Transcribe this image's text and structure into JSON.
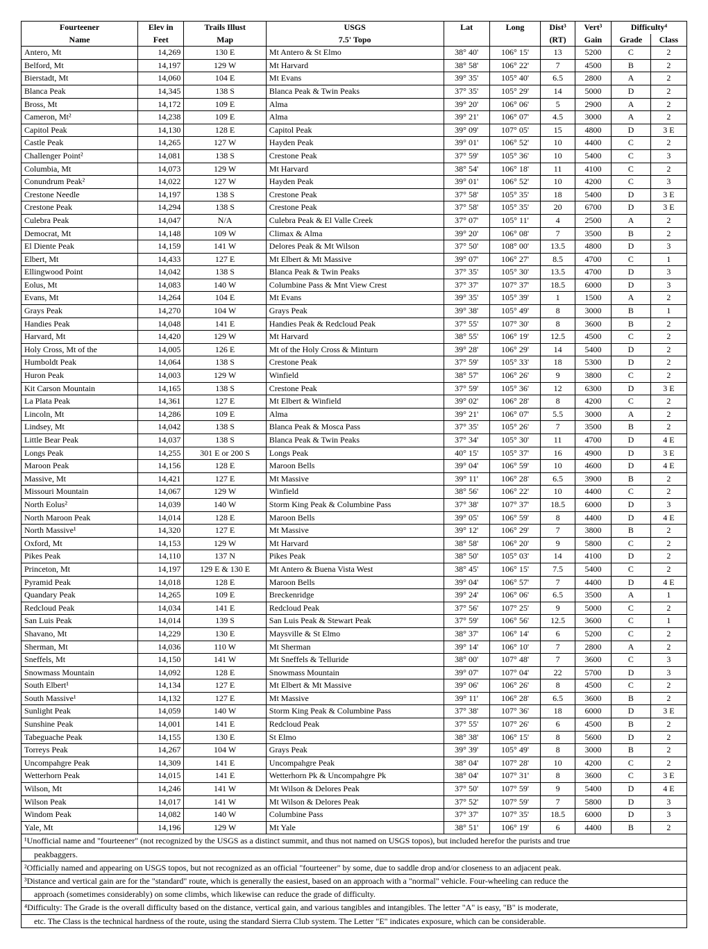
{
  "headers": {
    "row1": [
      "Fourteener",
      "Elev in",
      "Trails Illust",
      "USGS",
      "Lat",
      "Long",
      "Dist³",
      "Vert³",
      "Difficulty⁴"
    ],
    "row2": [
      "Name",
      "Feet",
      "Map",
      "7.5'  Topo",
      "",
      "",
      "(RT)",
      "Gain",
      "Grade",
      "Class"
    ]
  },
  "rows": [
    [
      "Antero, Mt",
      "14,269",
      "130 E",
      "Mt Antero  &  St Elmo",
      "38° 40'",
      "106° 15'",
      "13",
      "5200",
      "C",
      "2"
    ],
    [
      "Belford, Mt",
      "14,197",
      "129 W",
      "Mt Harvard",
      "38° 58'",
      "106° 22'",
      "7",
      "4500",
      "B",
      "2"
    ],
    [
      "Bierstadt, Mt",
      "14,060",
      "104 E",
      "Mt Evans",
      "39° 35'",
      "105° 40'",
      "6.5",
      "2800",
      "A",
      "2"
    ],
    [
      "Blanca Peak",
      "14,345",
      "138 S",
      "Blanca Peak  &  Twin Peaks",
      "37° 35'",
      "105° 29'",
      "14",
      "5000",
      "D",
      "2"
    ],
    [
      "Bross, Mt",
      "14,172",
      "109 E",
      "Alma",
      "39° 20'",
      "106° 06'",
      "5",
      "2900",
      "A",
      "2"
    ],
    [
      "Cameron, Mt²",
      "14,238",
      "109 E",
      "Alma",
      "39° 21'",
      "106° 07'",
      "4.5",
      "3000",
      "A",
      "2"
    ],
    [
      "Capitol Peak",
      "14,130",
      "128 E",
      "Capitol Peak",
      "39° 09'",
      "107° 05'",
      "15",
      "4800",
      "D",
      "3 E"
    ],
    [
      "Castle Peak",
      "14,265",
      "127 W",
      "Hayden Peak",
      "39° 01'",
      "106° 52'",
      "10",
      "4400",
      "C",
      "2"
    ],
    [
      "Challenger Point²",
      "14,081",
      "138 S",
      "Crestone Peak",
      "37° 59'",
      "105° 36'",
      "10",
      "5400",
      "C",
      "3"
    ],
    [
      "Columbia, Mt",
      "14,073",
      "129 W",
      "Mt Harvard",
      "38° 54'",
      "106° 18'",
      "11",
      "4100",
      "C",
      "2"
    ],
    [
      "Conundrum Peak²",
      "14,022",
      "127 W",
      "Hayden Peak",
      "39° 01'",
      "106° 52'",
      "10",
      "4200",
      "C",
      "3"
    ],
    [
      "Crestone Needle",
      "14,197",
      "138 S",
      "Crestone Peak",
      "37° 58'",
      "105° 35'",
      "18",
      "5400",
      "D",
      "3 E"
    ],
    [
      "Crestone Peak",
      "14,294",
      "138 S",
      "Crestone Peak",
      "37° 58'",
      "105° 35'",
      "20",
      "6700",
      "D",
      "3 E"
    ],
    [
      "Culebra Peak",
      "14,047",
      "N/A",
      "Culebra Peak  &  El Valle Creek",
      "37° 07'",
      "105° 11'",
      "4",
      "2500",
      "A",
      "2"
    ],
    [
      "Democrat, Mt",
      "14,148",
      "109 W",
      "Climax & Alma",
      "39° 20'",
      "106° 08'",
      "7",
      "3500",
      "B",
      "2"
    ],
    [
      "El Diente Peak",
      "14,159",
      "141 W",
      "Delores Peak  &  Mt Wilson",
      "37° 50'",
      "108° 00'",
      "13.5",
      "4800",
      "D",
      "3"
    ],
    [
      "Elbert, Mt",
      "14,433",
      "127 E",
      "Mt Elbert  &  Mt Massive",
      "39° 07'",
      "106° 27'",
      "8.5",
      "4700",
      "C",
      "1"
    ],
    [
      "Ellingwood Point",
      "14,042",
      "138 S",
      "Blanca Peak &  Twin Peaks",
      "37° 35'",
      "105° 30'",
      "13.5",
      "4700",
      "D",
      "3"
    ],
    [
      "Eolus, Mt",
      "14,083",
      "140 W",
      "Columbine Pass  &  Mnt View Crest",
      "37° 37'",
      "107° 37'",
      "18.5",
      "6000",
      "D",
      "3"
    ],
    [
      "Evans, Mt",
      "14,264",
      "104 E",
      "Mt Evans",
      "39° 35'",
      "105° 39'",
      "1",
      "1500",
      "A",
      "2"
    ],
    [
      "Grays Peak",
      "14,270",
      "104 W",
      "Grays Peak",
      "39° 38'",
      "105° 49'",
      "8",
      "3000",
      "B",
      "1"
    ],
    [
      "Handies Peak",
      "14,048",
      "141 E",
      "Handies Peak  &  Redcloud Peak",
      "37° 55'",
      "107° 30'",
      "8",
      "3600",
      "B",
      "2"
    ],
    [
      "Harvard, Mt",
      "14,420",
      "129 W",
      "Mt Harvard",
      "38° 55'",
      "106° 19'",
      "12.5",
      "4500",
      "C",
      "2"
    ],
    [
      "Holy Cross, Mt of the",
      "14,005",
      "126 E",
      "Mt of the Holy Cross  &  Minturn",
      "39° 28'",
      "106° 29'",
      "14",
      "5400",
      "D",
      "2"
    ],
    [
      "Humboldt Peak",
      "14,064",
      "138 S",
      "Crestone Peak",
      "37° 59'",
      "105° 33'",
      "18",
      "5300",
      "D",
      "2"
    ],
    [
      "Huron Peak",
      "14,003",
      "129 W",
      "Winfield",
      "38° 57'",
      "106° 26'",
      "9",
      "3800",
      "C",
      "2"
    ],
    [
      "Kit Carson Mountain",
      "14,165",
      "138 S",
      "Crestone Peak",
      "37° 59'",
      "105° 36'",
      "12",
      "6300",
      "D",
      "3 E"
    ],
    [
      "La Plata Peak",
      "14,361",
      "127 E",
      "Mt Elbert  &  Winfield",
      "39° 02'",
      "106° 28'",
      "8",
      "4200",
      "C",
      "2"
    ],
    [
      "Lincoln, Mt",
      "14,286",
      "109 E",
      "Alma",
      "39° 21'",
      "106° 07'",
      "5.5",
      "3000",
      "A",
      "2"
    ],
    [
      "Lindsey, Mt",
      "14,042",
      "138 S",
      "Blanca Peak  &  Mosca Pass",
      "37° 35'",
      "105° 26'",
      "7",
      "3500",
      "B",
      "2"
    ],
    [
      "Little Bear Peak",
      "14,037",
      "138 S",
      "Blanca Peak  &  Twin Peaks",
      "37° 34'",
      "105° 30'",
      "11",
      "4700",
      "D",
      "4 E"
    ],
    [
      "Longs Peak",
      "14,255",
      "301 E  or  200 S",
      "Longs Peak",
      "40° 15'",
      "105° 37'",
      "16",
      "4900",
      "D",
      "3 E"
    ],
    [
      "Maroon Peak",
      "14,156",
      "128 E",
      "Maroon Bells",
      "39° 04'",
      "106° 59'",
      "10",
      "4600",
      "D",
      "4 E"
    ],
    [
      "Massive, Mt",
      "14,421",
      "127 E",
      "Mt Massive",
      "39° 11'",
      "106° 28'",
      "6.5",
      "3900",
      "B",
      "2"
    ],
    [
      "Missouri Mountain",
      "14,067",
      "129 W",
      "Winfield",
      "38° 56'",
      "106° 22'",
      "10",
      "4400",
      "C",
      "2"
    ],
    [
      "North Eolus²",
      "14,039",
      "140 W",
      "Storm King Peak  &  Columbine Pass",
      "37° 38'",
      "107° 37'",
      "18.5",
      "6000",
      "D",
      "3"
    ],
    [
      "North Maroon Peak",
      "14,014",
      "128 E",
      "Maroon Bells",
      "39° 05'",
      "106° 59'",
      "8",
      "4400",
      "D",
      "4 E"
    ],
    [
      "North Massive¹",
      "14,320",
      "127 E",
      "Mt Massive",
      "39° 12'",
      "106° 29'",
      "7",
      "3800",
      "B",
      "2"
    ],
    [
      "Oxford, Mt",
      "14,153",
      "129 W",
      "Mt Harvard",
      "38° 58'",
      "106° 20'",
      "9",
      "5800",
      "C",
      "2"
    ],
    [
      "Pikes Peak",
      "14,110",
      "137 N",
      "Pikes Peak",
      "38° 50'",
      "105° 03'",
      "14",
      "4100",
      "D",
      "2"
    ],
    [
      "Princeton, Mt",
      "14,197",
      "129 E  &  130 E",
      "Mt Antero  &  Buena Vista West",
      "38° 45'",
      "106° 15'",
      "7.5",
      "5400",
      "C",
      "2"
    ],
    [
      "Pyramid Peak",
      "14,018",
      "128 E",
      "Maroon Bells",
      "39° 04'",
      "106° 57'",
      "7",
      "4400",
      "D",
      "4 E"
    ],
    [
      "Quandary Peak",
      "14,265",
      "109 E",
      "Breckenridge",
      "39° 24'",
      "106° 06'",
      "6.5",
      "3500",
      "A",
      "1"
    ],
    [
      "Redcloud Peak",
      "14,034",
      "141 E",
      "Redcloud Peak",
      "37° 56'",
      "107° 25'",
      "9",
      "5000",
      "C",
      "2"
    ],
    [
      "San Luis Peak",
      "14,014",
      "139 S",
      "San Luis Peak  &  Stewart Peak",
      "37° 59'",
      "106° 56'",
      "12.5",
      "3600",
      "C",
      "1"
    ],
    [
      "Shavano, Mt",
      "14,229",
      "130 E",
      "Maysville  &  St Elmo",
      "38° 37'",
      "106° 14'",
      "6",
      "5200",
      "C",
      "2"
    ],
    [
      "Sherman, Mt",
      "14,036",
      "110 W",
      "Mt Sherman",
      "39° 14'",
      "106° 10'",
      "7",
      "2800",
      "A",
      "2"
    ],
    [
      "Sneffels, Mt",
      "14,150",
      "141 W",
      "Mt Sneffels  &  Telluride",
      "38° 00'",
      "107° 48'",
      "7",
      "3600",
      "C",
      "3"
    ],
    [
      "Snowmass Mountain",
      "14,092",
      "128 E",
      "Snowmass Mountain",
      "39° 07'",
      "107° 04'",
      "22",
      "5700",
      "D",
      "3"
    ],
    [
      "South Elbert¹",
      "14,134",
      "127 E",
      "Mt Elbert  &  Mt Massive",
      "39° 06'",
      "106° 26'",
      "8",
      "4500",
      "C",
      "2"
    ],
    [
      "South Massive¹",
      "14,132",
      "127 E",
      "Mt Massive",
      "39° 11'",
      "106° 28'",
      "6.5",
      "3600",
      "B",
      "2"
    ],
    [
      "Sunlight Peak",
      "14,059",
      "140 W",
      "Storm King Peak  &  Columbine Pass",
      "37° 38'",
      "107° 36'",
      "18",
      "6000",
      "D",
      "3 E"
    ],
    [
      "Sunshine Peak",
      "14,001",
      "141 E",
      "Redcloud Peak",
      "37° 55'",
      "107° 26'",
      "6",
      "4500",
      "B",
      "2"
    ],
    [
      "Tabeguache Peak",
      "14,155",
      "130 E",
      "St Elmo",
      "38° 38'",
      "106° 15'",
      "8",
      "5600",
      "D",
      "2"
    ],
    [
      "Torreys Peak",
      "14,267",
      "104 W",
      "Grays Peak",
      "39° 39'",
      "105° 49'",
      "8",
      "3000",
      "B",
      "2"
    ],
    [
      "Uncompahgre Peak",
      "14,309",
      "141 E",
      "Uncompahgre Peak",
      "38° 04'",
      "107° 28'",
      "10",
      "4200",
      "C",
      "2"
    ],
    [
      "Wetterhorn Peak",
      "14,015",
      "141 E",
      "Wetterhorn Pk  &  Uncompahgre Pk",
      "38° 04'",
      "107° 31'",
      "8",
      "3600",
      "C",
      "3 E"
    ],
    [
      "Wilson, Mt",
      "14,246",
      "141 W",
      "Mt Wilson  &  Delores Peak",
      "37° 50'",
      "107° 59'",
      "9",
      "5400",
      "D",
      "4 E"
    ],
    [
      "Wilson  Peak",
      "14,017",
      "141 W",
      "Mt Wilson  &  Delores Peak",
      "37° 52'",
      "107° 59'",
      "7",
      "5800",
      "D",
      "3"
    ],
    [
      "Windom  Peak",
      "14,082",
      "140 W",
      "Columbine Pass",
      "37° 37'",
      "107° 35'",
      "18.5",
      "6000",
      "D",
      "3"
    ],
    [
      "Yale, Mt",
      "14,196",
      "129 W",
      "Mt Yale",
      "38° 51'",
      "106° 19'",
      "6",
      "4400",
      "B",
      "2"
    ]
  ],
  "footnotes": [
    "¹Unofficial name and \"fourteener\" (not recognized by the USGS as a distinct summit, and thus not named on USGS topos), but included herefor the purists and true",
    "peakbaggers.",
    "²Officially named and appearing on USGS topos, but not recognized as an official \"fourteener\" by some, due to saddle drop and/or closeness to an adjacent peak.",
    "³Distance and vertical gain are for the \"standard\" route, which is generally the easiest, based on an approach with a \"normal\" vehicle.  Four-wheeling can reduce the",
    "approach (sometimes considerably) on some climbs, which likewise can reduce the grade of difficulty.",
    "⁴Difficulty: The Grade is the overall difficulty based on the distance, vertical gain, and various tangibles and intangibles.  The letter \"A\" is easy, \"B\" is moderate,",
    "etc.  The Class is the technical hardness of the route, using the standard Sierra Club system.  The Letter \"E\" indicates exposure, which can be considerable."
  ]
}
